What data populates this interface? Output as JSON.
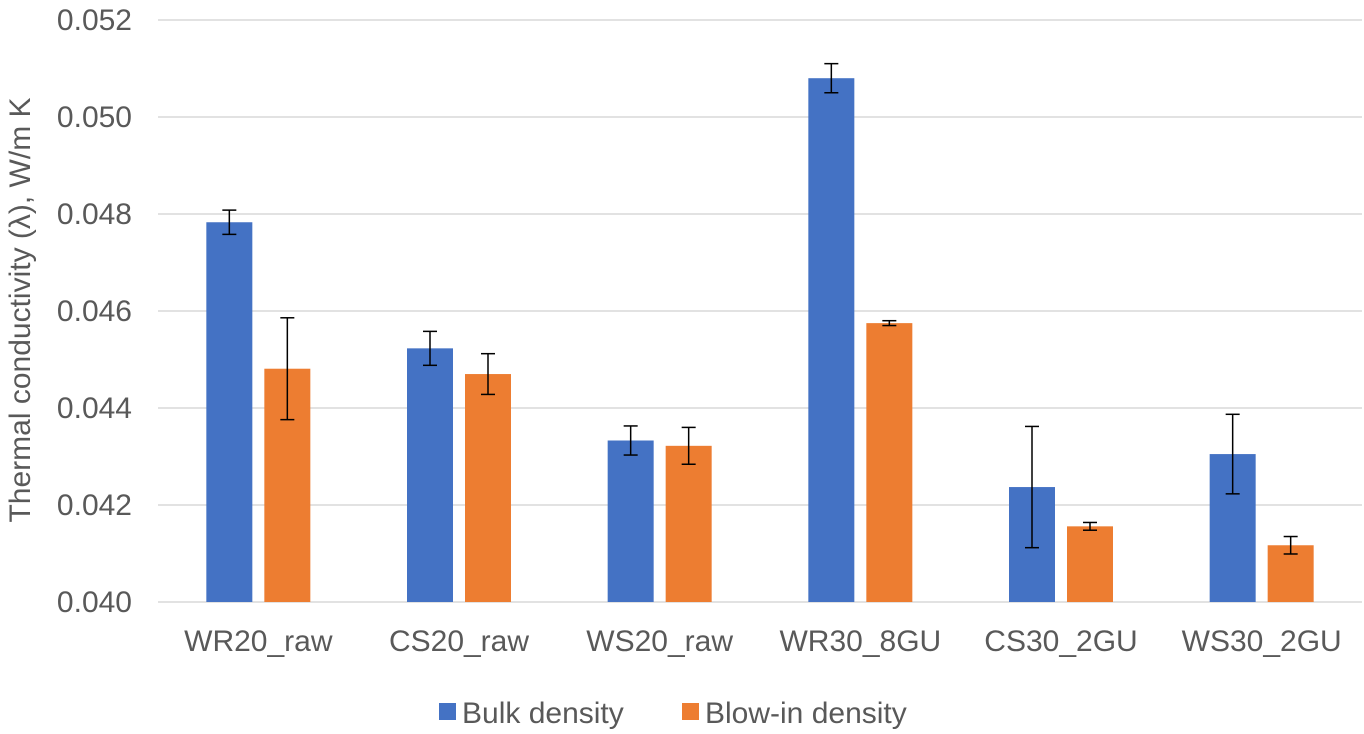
{
  "chart_data": {
    "type": "bar",
    "title": "",
    "xlabel": "",
    "ylabel": "Thermal conductivity (λ), W/m K",
    "ylim": [
      0.04,
      0.052
    ],
    "ytick_step": 0.002,
    "yticks": [
      "0.040",
      "0.042",
      "0.044",
      "0.046",
      "0.048",
      "0.050",
      "0.052"
    ],
    "grid": true,
    "legend_position": "bottom",
    "categories": [
      "WR20_raw",
      "CS20_raw",
      "WS20_raw",
      "WR30_8GU",
      "CS30_2GU",
      "WS30_2GU"
    ],
    "series": [
      {
        "name": "Bulk density",
        "color": "#4472C4",
        "values": [
          0.04783,
          0.04523,
          0.04333,
          0.0508,
          0.04237,
          0.04305
        ],
        "errors": [
          0.00025,
          0.00035,
          0.0003,
          0.0003,
          0.00125,
          0.00082
        ]
      },
      {
        "name": "Blow-in density",
        "color": "#ED7D31",
        "values": [
          0.04481,
          0.0447,
          0.04322,
          0.04575,
          0.04156,
          0.04117
        ],
        "errors": [
          0.00105,
          0.00042,
          0.00038,
          5e-05,
          8e-05,
          0.00018
        ]
      }
    ]
  }
}
